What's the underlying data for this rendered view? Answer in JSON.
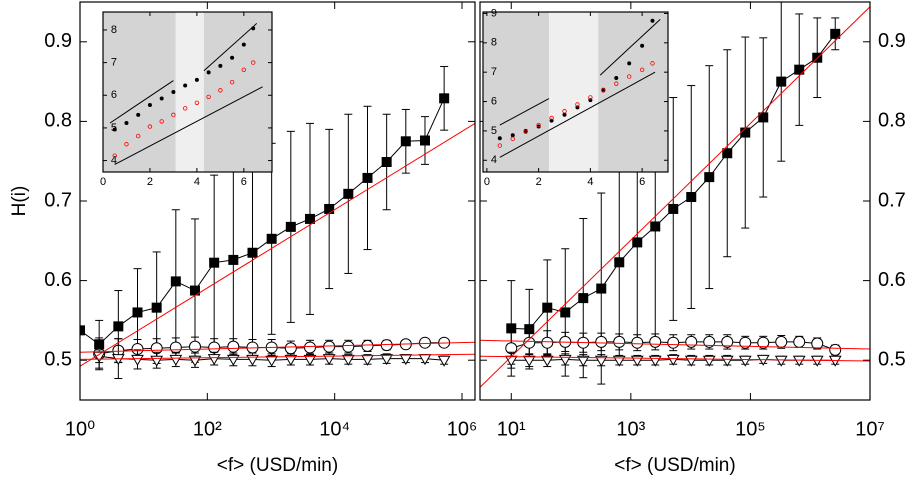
{
  "chart_data": [
    {
      "type": "line",
      "xlabel": "<f> (USD/min)",
      "ylabel": "H(i)",
      "xscale": "log",
      "yaxis_side": "left",
      "xlim": [
        1,
        1600000
      ],
      "xticks": [
        {
          "value": 1,
          "label": "10⁰"
        },
        {
          "value": 100,
          "label": "10²"
        },
        {
          "value": 10000,
          "label": "10⁴"
        },
        {
          "value": 1000000,
          "label": "10⁶"
        }
      ],
      "ylim": [
        0.45,
        0.95
      ],
      "yticks": [
        0.5,
        0.6,
        0.7,
        0.8,
        0.9
      ],
      "series": [
        {
          "marker": "square",
          "color": "#000000",
          "x": [
            1,
            2,
            4,
            8,
            16,
            32,
            64,
            128,
            256,
            512,
            1024,
            2048,
            4096,
            8192,
            16384,
            32768,
            65536,
            131072,
            262144,
            524288
          ],
          "values": [
            0.5375,
            0.52,
            0.5425,
            0.56,
            0.566,
            0.599,
            0.5875,
            0.6225,
            0.626,
            0.635,
            0.6525,
            0.6675,
            0.6775,
            0.69,
            0.709,
            0.729,
            0.749,
            0.775,
            0.776,
            0.829
          ],
          "errors": [
            0,
            0.03,
            0.045,
            0.055,
            0.07,
            0.09,
            0.09,
            0.11,
            0.12,
            0.12,
            0.12,
            0.12,
            0.12,
            0.1,
            0.1,
            0.09,
            0.06,
            0.04,
            0.03,
            0.04
          ]
        },
        {
          "marker": "circle",
          "color": "#000000",
          "x": [
            2,
            4,
            8,
            16,
            32,
            64,
            128,
            256,
            512,
            1024,
            2048,
            4096,
            8192,
            16384,
            32768,
            65536,
            131072,
            262144,
            524288
          ],
          "values": [
            0.508,
            0.512,
            0.514,
            0.515,
            0.516,
            0.517,
            0.516,
            0.517,
            0.516,
            0.516,
            0.515,
            0.516,
            0.517,
            0.517,
            0.518,
            0.519,
            0.52,
            0.522,
            0.522
          ],
          "errors": [
            0.02,
            0.015,
            0.012,
            0.012,
            0.012,
            0.012,
            0.011,
            0.01,
            0.01,
            0.01,
            0.009,
            0.009,
            0.008,
            0.008,
            0.007,
            0.006,
            0.005,
            0.004,
            0.004
          ]
        },
        {
          "marker": "triangle",
          "color": "#000000",
          "x": [
            2,
            4,
            8,
            16,
            32,
            64,
            128,
            256,
            512,
            1024,
            2048,
            4096,
            8192,
            16384,
            32768,
            65536,
            131072,
            262144,
            524288
          ],
          "values": [
            0.505,
            0.502,
            0.501,
            0.5,
            0.501,
            0.5,
            0.502,
            0.501,
            0.501,
            0.5,
            0.501,
            0.501,
            0.502,
            0.501,
            0.501,
            0.502,
            0.502,
            0.502,
            0.5
          ],
          "errors": [
            0.008,
            0.025,
            0.012,
            0.01,
            0.009,
            0.009,
            0.008,
            0.008,
            0.008,
            0.008,
            0.007,
            0.007,
            0.007,
            0.006,
            0.006,
            0.006,
            0.005,
            0.005,
            0.005
          ]
        },
        {
          "marker": "none",
          "color": "#ff0000",
          "x": [
            1,
            1600000
          ],
          "values": [
            0.4925,
            0.7975
          ]
        },
        {
          "marker": "none",
          "color": "#ff0000",
          "x": [
            1,
            1600000
          ],
          "values": [
            0.51,
            0.5225
          ]
        },
        {
          "marker": "none",
          "color": "#ff0000",
          "x": [
            1,
            1600000
          ],
          "values": [
            0.501,
            0.5075
          ]
        }
      ]
    },
    {
      "type": "scatter",
      "xlim": [
        0,
        7.2
      ],
      "xticks": [
        0,
        2,
        4,
        6
      ],
      "ylim": [
        3.65,
        8.55
      ],
      "yticks": [
        4,
        5,
        6,
        7,
        8
      ],
      "bands": [
        {
          "xlim": [
            0,
            3.1
          ],
          "color": "#d4d4d4"
        },
        {
          "xlim": [
            3.1,
            4.3
          ],
          "color": "#efefef"
        },
        {
          "xlim": [
            4.3,
            7.2
          ],
          "color": "#d4d4d4"
        }
      ],
      "series": [
        {
          "marker": "dot",
          "color": "#000000",
          "x": [
            0.5,
            1,
            1.5,
            2,
            2.5,
            3,
            3.5,
            4,
            4.5,
            5,
            5.5,
            6,
            6.4
          ],
          "values": [
            4.95,
            5.15,
            5.4,
            5.7,
            5.9,
            6.1,
            6.3,
            6.47,
            6.7,
            6.9,
            7.15,
            7.55,
            8.05
          ]
        },
        {
          "marker": "ring",
          "color": "#ff0000",
          "x": [
            0.5,
            1,
            1.5,
            2,
            2.5,
            3,
            3.5,
            4,
            4.5,
            5,
            5.5,
            6,
            6.4
          ],
          "values": [
            4.15,
            4.5,
            4.75,
            5.04,
            5.2,
            5.4,
            5.6,
            5.77,
            5.95,
            6.15,
            6.4,
            6.78,
            7.0
          ]
        },
        {
          "marker": "none",
          "color": "#000000",
          "x": [
            0.3,
            3.0
          ],
          "values": [
            5.15,
            6.45
          ]
        },
        {
          "marker": "none",
          "color": "#000000",
          "x": [
            4.3,
            6.55
          ],
          "values": [
            6.75,
            8.2
          ]
        },
        {
          "marker": "none",
          "color": "#000000",
          "x": [
            0.5,
            6.8
          ],
          "values": [
            3.88,
            6.26
          ]
        }
      ]
    },
    {
      "type": "line",
      "xlabel": "<f> (USD/min)",
      "xscale": "log",
      "yaxis_side": "right",
      "xlim": [
        3,
        10000000
      ],
      "xticks": [
        {
          "value": 10,
          "label": "10¹"
        },
        {
          "value": 1000,
          "label": "10³"
        },
        {
          "value": 100000,
          "label": "10⁵"
        },
        {
          "value": 10000000,
          "label": "10⁷"
        }
      ],
      "ylim": [
        0.45,
        0.95
      ],
      "yticks": [
        0.5,
        0.6,
        0.7,
        0.8,
        0.9
      ],
      "series": [
        {
          "marker": "square",
          "color": "#000000",
          "x": [
            10,
            20,
            40,
            80,
            160,
            320,
            640,
            1280,
            2560,
            5120,
            10240,
            20480,
            40960,
            81920,
            163840,
            327680,
            655360,
            1310720,
            2621440
          ],
          "values": [
            0.54,
            0.539,
            0.566,
            0.56,
            0.578,
            0.59,
            0.623,
            0.648,
            0.668,
            0.69,
            0.705,
            0.73,
            0.76,
            0.786,
            0.805,
            0.85,
            0.865,
            0.88,
            0.91
          ],
          "errors": [
            0.06,
            0.05,
            0.06,
            0.08,
            0.1,
            0.12,
            0.12,
            0.13,
            0.14,
            0.14,
            0.14,
            0.14,
            0.13,
            0.12,
            0.1,
            0.1,
            0.07,
            0.05,
            0.02
          ]
        },
        {
          "marker": "circle",
          "color": "#000000",
          "x": [
            10,
            20,
            40,
            80,
            160,
            320,
            640,
            1280,
            2560,
            5120,
            10240,
            20480,
            40960,
            81920,
            163840,
            327680,
            655360,
            1310720,
            2621440
          ],
          "values": [
            0.515,
            0.522,
            0.522,
            0.523,
            0.522,
            0.523,
            0.523,
            0.522,
            0.523,
            0.522,
            0.523,
            0.523,
            0.523,
            0.522,
            0.522,
            0.523,
            0.523,
            0.521,
            0.513
          ],
          "errors": [
            0.02,
            0.015,
            0.015,
            0.012,
            0.012,
            0.011,
            0.01,
            0.01,
            0.01,
            0.01,
            0.009,
            0.009,
            0.009,
            0.008,
            0.008,
            0.008,
            0.007,
            0.007,
            0.006
          ]
        },
        {
          "marker": "triangle",
          "color": "#000000",
          "x": [
            10,
            20,
            40,
            80,
            160,
            320,
            640,
            1280,
            2560,
            5120,
            10240,
            20480,
            40960,
            81920,
            163840,
            327680,
            655360,
            1310720,
            2621440
          ],
          "values": [
            0.5,
            0.5,
            0.5,
            0.501,
            0.5,
            0.5,
            0.5,
            0.5,
            0.5,
            0.501,
            0.5,
            0.5,
            0.5,
            0.5,
            0.501,
            0.5,
            0.5,
            0.5,
            0.5
          ],
          "errors": [
            0.01,
            0.008,
            0.008,
            0.007,
            0.007,
            0.007,
            0.006,
            0.006,
            0.006,
            0.006,
            0.006,
            0.006,
            0.006,
            0.005,
            0.005,
            0.005,
            0.005,
            0.005,
            0.005
          ]
        },
        {
          "marker": "none",
          "color": "#ff0000",
          "x": [
            3,
            10000000
          ],
          "values": [
            0.466,
            0.944
          ]
        },
        {
          "marker": "none",
          "color": "#ff0000",
          "x": [
            3,
            10000000
          ],
          "values": [
            0.525,
            0.514
          ]
        },
        {
          "marker": "none",
          "color": "#ff0000",
          "x": [
            3,
            10000000
          ],
          "values": [
            0.505,
            0.499
          ]
        }
      ]
    },
    {
      "type": "scatter",
      "xlim": [
        -0.15,
        7.0
      ],
      "xticks": [
        0,
        2,
        4,
        6
      ],
      "ylim": [
        3.6,
        9.05
      ],
      "yticks": [
        4,
        5,
        6,
        7,
        8,
        9
      ],
      "bands": [
        {
          "xlim": [
            -0.15,
            2.4
          ],
          "color": "#d4d4d4"
        },
        {
          "xlim": [
            2.4,
            4.3
          ],
          "color": "#efefef"
        },
        {
          "xlim": [
            4.3,
            7.0
          ],
          "color": "#d4d4d4"
        }
      ],
      "series": [
        {
          "marker": "dot",
          "color": "#000000",
          "x": [
            0.5,
            1,
            1.5,
            2,
            2.5,
            3,
            3.5,
            4,
            4.5,
            5,
            5.5,
            6,
            6.4
          ],
          "values": [
            4.75,
            4.85,
            5.0,
            5.15,
            5.35,
            5.55,
            5.8,
            6.05,
            6.4,
            6.8,
            7.3,
            7.9,
            8.75
          ]
        },
        {
          "marker": "ring",
          "color": "#ff0000",
          "x": [
            0.5,
            1,
            1.5,
            2,
            2.5,
            3,
            3.5,
            4,
            4.5,
            5,
            5.5,
            6,
            6.4
          ],
          "values": [
            4.5,
            4.73,
            4.97,
            5.2,
            5.44,
            5.67,
            5.9,
            6.14,
            6.38,
            6.61,
            6.85,
            7.08,
            7.3
          ]
        },
        {
          "marker": "none",
          "color": "#000000",
          "x": [
            0.5,
            2.4
          ],
          "values": [
            5.2,
            6.1
          ]
        },
        {
          "marker": "none",
          "color": "#000000",
          "x": [
            4.38,
            6.7
          ],
          "values": [
            6.9,
            8.8
          ]
        },
        {
          "marker": "none",
          "color": "#000000",
          "x": [
            0.5,
            6.5
          ],
          "values": [
            4.1,
            7.0
          ]
        }
      ]
    }
  ]
}
